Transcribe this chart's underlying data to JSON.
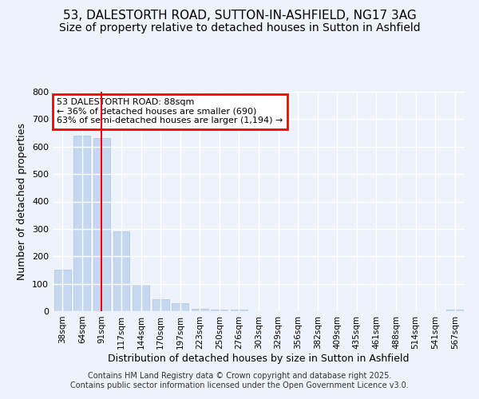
{
  "title_line1": "53, DALESTORTH ROAD, SUTTON-IN-ASHFIELD, NG17 3AG",
  "title_line2": "Size of property relative to detached houses in Sutton in Ashfield",
  "xlabel": "Distribution of detached houses by size in Sutton in Ashfield",
  "ylabel": "Number of detached properties",
  "bar_color": "#c5d8f0",
  "bar_edge_color": "#a8c4e0",
  "categories": [
    "38sqm",
    "64sqm",
    "91sqm",
    "117sqm",
    "144sqm",
    "170sqm",
    "197sqm",
    "223sqm",
    "250sqm",
    "276sqm",
    "303sqm",
    "329sqm",
    "356sqm",
    "382sqm",
    "409sqm",
    "435sqm",
    "461sqm",
    "488sqm",
    "514sqm",
    "541sqm",
    "567sqm"
  ],
  "values": [
    150,
    640,
    630,
    290,
    100,
    45,
    30,
    10,
    5,
    5,
    0,
    0,
    0,
    0,
    0,
    0,
    0,
    0,
    0,
    0,
    5
  ],
  "ylim": [
    0,
    800
  ],
  "yticks": [
    0,
    100,
    200,
    300,
    400,
    500,
    600,
    700,
    800
  ],
  "red_line_x": 2.0,
  "annotation_text": "53 DALESTORTH ROAD: 88sqm\n← 36% of detached houses are smaller (690)\n63% of semi-detached houses are larger (1,194) →",
  "footer_text": "Contains HM Land Registry data © Crown copyright and database right 2025.\nContains public sector information licensed under the Open Government Licence v3.0.",
  "background_color": "#eef2fa",
  "grid_color": "#ffffff",
  "title1_fontsize": 11,
  "title2_fontsize": 10,
  "axis_label_fontsize": 9,
  "tick_fontsize": 7.5,
  "footer_fontsize": 7
}
